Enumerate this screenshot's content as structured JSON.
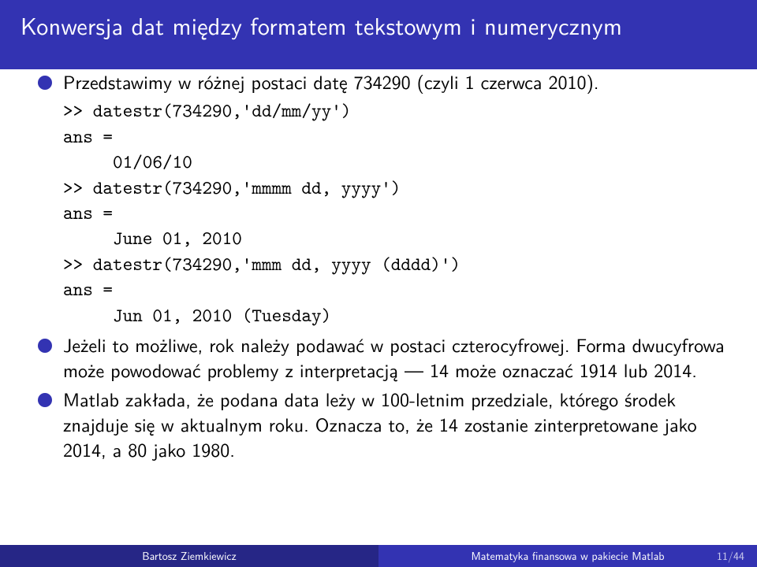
{
  "title": "Konwersja dat między formatem tekstowym i numerycznym",
  "bullets": {
    "b1": "Przedstawimy w różnej postaci datę 734290 (czyli 1 czerwca 2010).",
    "b2": "Jeżeli to możliwe, rok należy podawać w postaci czterocyfrowej. Forma dwucyfrowa może powodować problemy z interpretacją — 14 może oznaczać 1914 lub 2014.",
    "b3": "Matlab zakłada, że podana data leży w 100-letnim przedziale, którego środek znajduje się w aktualnym roku. Oznacza to, że 14 zostanie zinterpretowane jako 2014, a 80 jako 1980."
  },
  "code": ">> datestr(734290,'dd/mm/yy')\nans =\n     01/06/10\n>> datestr(734290,'mmmm dd, yyyy')\nans =\n     June 01, 2010\n>> datestr(734290,'mmm dd, yyyy (dddd)')\nans =\n     Jun 01, 2010 (Tuesday)",
  "footer": {
    "author": "Bartosz Ziemkiewicz",
    "course": "Matematyka finansowa w pakiecie Matlab",
    "page": "11/44"
  },
  "colors": {
    "title_bg": "#3333b2",
    "title_fg": "#ffffff",
    "bullet": "#3333b2",
    "footer_left_bg": "#262686",
    "footer_right_bg": "#3333b2",
    "footer_fg": "#ffffff",
    "page_fg": "#cfcfee",
    "body_bg": "#ffffff",
    "text": "#000000"
  },
  "typography": {
    "title_fontsize": 30,
    "body_fontsize": 24,
    "code_fontsize": 24,
    "footer_fontsize": 14
  }
}
